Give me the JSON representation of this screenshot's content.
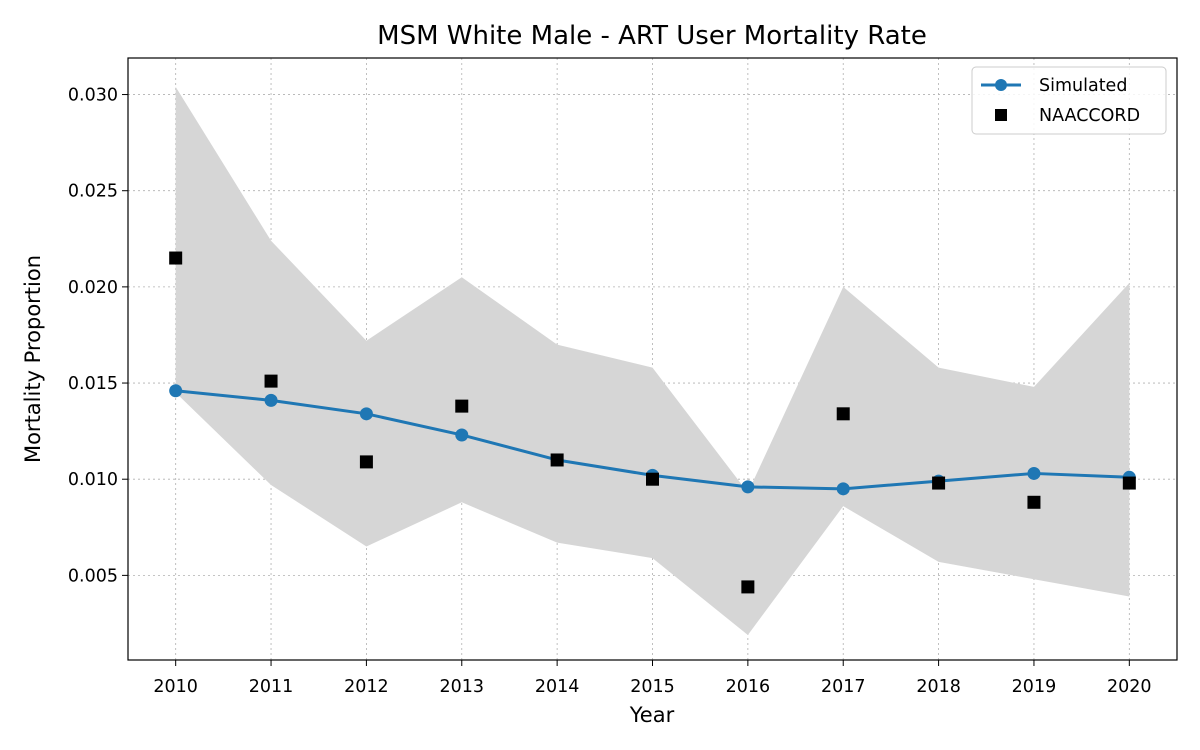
{
  "chart_data": {
    "type": "line",
    "title": "MSM White Male - ART User Mortality Rate",
    "xlabel": "Year",
    "ylabel": "Mortality Proportion",
    "x": [
      2010,
      2011,
      2012,
      2013,
      2014,
      2015,
      2016,
      2017,
      2018,
      2019,
      2020
    ],
    "xlim": [
      2009.5,
      2020.5
    ],
    "ylim": [
      0.0006,
      0.0319
    ],
    "yticks": [
      0.005,
      0.01,
      0.015,
      0.02,
      0.025,
      0.03
    ],
    "ytick_labels": [
      "0.005",
      "0.010",
      "0.015",
      "0.020",
      "0.025",
      "0.030"
    ],
    "grid": true,
    "legend_position": "top-right",
    "series": [
      {
        "name": "Simulated",
        "kind": "line-marker",
        "color": "#1f77b4",
        "values": [
          0.0146,
          0.0141,
          0.0134,
          0.0123,
          0.011,
          0.0102,
          0.0096,
          0.0095,
          0.0099,
          0.0103,
          0.0101
        ]
      },
      {
        "name": "NAACCORD",
        "kind": "square-marker",
        "color": "#000000",
        "values": [
          0.0215,
          0.0151,
          0.0109,
          0.0138,
          0.011,
          0.01,
          0.0044,
          0.0134,
          0.0098,
          0.0088,
          0.0098
        ]
      }
    ],
    "band": {
      "color": "#d6d6d6",
      "upper": [
        0.0304,
        0.0224,
        0.0172,
        0.0205,
        0.017,
        0.0158,
        0.0093,
        0.02,
        0.0158,
        0.0148,
        0.0202
      ],
      "lower": [
        0.0145,
        0.0097,
        0.0065,
        0.0088,
        0.0067,
        0.0059,
        0.0019,
        0.0086,
        0.0057,
        0.0048,
        0.0039
      ]
    }
  }
}
